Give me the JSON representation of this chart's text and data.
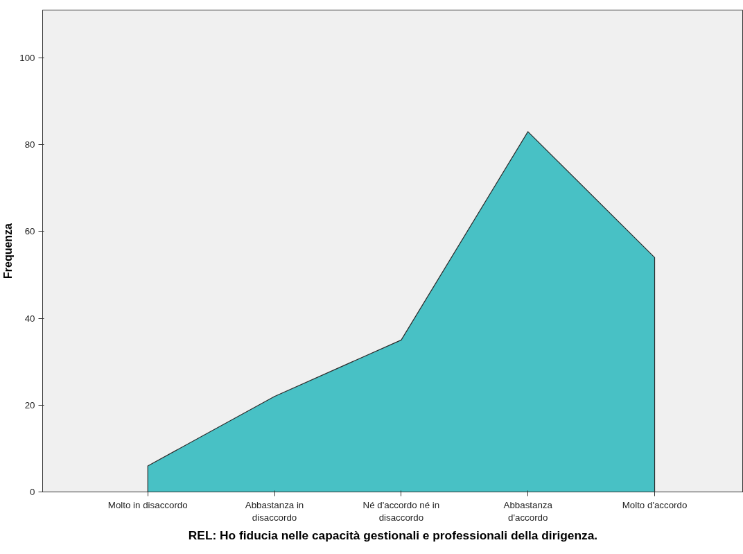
{
  "chart_data": {
    "type": "area",
    "xlabel": "REL: Ho fiducia nelle capacità gestionali e professionali della dirigenza.",
    "ylabel": "Frequenza",
    "categories": [
      "Molto in disaccordo",
      "Abbastanza in\ndisaccordo",
      "Né d'accordo né in\ndisaccordo",
      "Abbastanza\nd'accordo",
      "Molto d'accordo"
    ],
    "series": [
      {
        "color": "#48c1c5",
        "values": [
          6,
          22,
          35,
          83,
          54
        ]
      }
    ],
    "ylim": [
      0,
      111
    ],
    "yticks": [
      0,
      20,
      40,
      60,
      80,
      100
    ],
    "grid": false
  }
}
